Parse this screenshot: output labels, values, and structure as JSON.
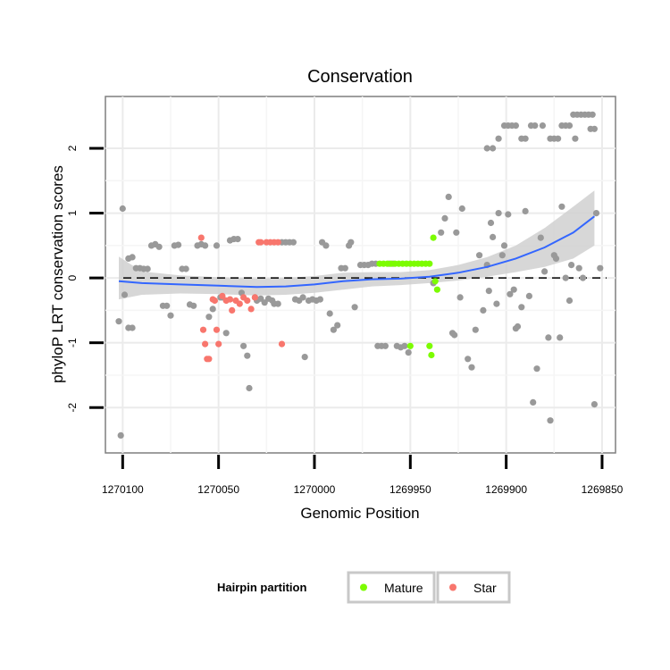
{
  "chart_data": {
    "type": "scatter",
    "title": "Conservation",
    "xlabel": "Genomic Position",
    "ylabel": "phyloP LRT conservation scores",
    "x_reversed": true,
    "xlim": [
      1270109,
      1269843
    ],
    "ylim": [
      -2.7,
      2.8
    ],
    "xticks": [
      1270100,
      1270050,
      1270000,
      1269950,
      1269900,
      1269850
    ],
    "xtick_labels": [
      "1270100",
      "1270050",
      "1270000",
      "1269950",
      "1269900",
      "1269850"
    ],
    "yticks": [
      -2,
      -1,
      0,
      1,
      2
    ],
    "ytick_labels": [
      "-2",
      "-1",
      "0",
      "1",
      "2"
    ],
    "reference_line": {
      "y": 0,
      "style": "dashed",
      "color": "#000000"
    },
    "grid": true,
    "legend": {
      "title": "Hairpin partition",
      "placement": "bottom",
      "entries": [
        {
          "name": "Mature",
          "color": "#7CFC00"
        },
        {
          "name": "Star",
          "color": "#F8766D"
        }
      ]
    },
    "colors": {
      "other": "#999999",
      "smooth": "#3366FF",
      "ribbon": "#D0D0D0"
    },
    "smooth": {
      "x": [
        1270102,
        1270090,
        1270070,
        1270050,
        1270030,
        1270015,
        1270000,
        1269985,
        1269970,
        1269955,
        1269940,
        1269925,
        1269910,
        1269895,
        1269880,
        1269865,
        1269854
      ],
      "y": [
        -0.05,
        -0.08,
        -0.1,
        -0.12,
        -0.14,
        -0.13,
        -0.1,
        -0.05,
        -0.02,
        -0.01,
        0.02,
        0.08,
        0.17,
        0.3,
        0.47,
        0.7,
        0.95
      ],
      "lower": [
        -0.33,
        -0.26,
        -0.24,
        -0.25,
        -0.27,
        -0.26,
        -0.23,
        -0.18,
        -0.13,
        -0.11,
        -0.08,
        -0.04,
        0.02,
        0.09,
        0.17,
        0.3,
        0.5
      ],
      "upper": [
        0.33,
        0.1,
        0.04,
        0.01,
        -0.01,
        0.0,
        0.03,
        0.08,
        0.09,
        0.09,
        0.12,
        0.2,
        0.32,
        0.5,
        0.77,
        1.1,
        1.35
      ]
    },
    "series": [
      {
        "name": "Other",
        "color": "#999999",
        "points": [
          [
            1270102,
            -0.67
          ],
          [
            1270100,
            1.07
          ],
          [
            1270099,
            -0.26
          ],
          [
            1270097,
            -0.77
          ],
          [
            1270095,
            -0.77
          ],
          [
            1270101,
            -2.43
          ],
          [
            1270097,
            0.3
          ],
          [
            1270095,
            0.32
          ],
          [
            1270093,
            0.15
          ],
          [
            1270091,
            0.15
          ],
          [
            1270089,
            0.14
          ],
          [
            1270087,
            0.14
          ],
          [
            1270085,
            0.5
          ],
          [
            1270083,
            0.52
          ],
          [
            1270081,
            0.48
          ],
          [
            1270079,
            -0.43
          ],
          [
            1270077,
            -0.43
          ],
          [
            1270075,
            -0.58
          ],
          [
            1270073,
            0.5
          ],
          [
            1270071,
            0.51
          ],
          [
            1270069,
            0.14
          ],
          [
            1270067,
            0.14
          ],
          [
            1270065,
            -0.41
          ],
          [
            1270063,
            -0.43
          ],
          [
            1270061,
            0.5
          ],
          [
            1270059,
            0.52
          ],
          [
            1270057,
            0.5
          ],
          [
            1270055,
            -0.6
          ],
          [
            1270053,
            -0.48
          ],
          [
            1270051,
            0.5
          ],
          [
            1270049,
            -0.3
          ],
          [
            1270048,
            -0.3
          ],
          [
            1270046,
            -0.85
          ],
          [
            1270044,
            0.58
          ],
          [
            1270042,
            0.6
          ],
          [
            1270040,
            0.6
          ],
          [
            1270038,
            -0.23
          ],
          [
            1270037,
            -1.05
          ],
          [
            1270035,
            -1.2
          ],
          [
            1270034,
            -1.7
          ],
          [
            1270031,
            -0.3
          ],
          [
            1270030,
            -0.35
          ],
          [
            1270028,
            -0.32
          ],
          [
            1270026,
            -0.38
          ],
          [
            1270024,
            -0.32
          ],
          [
            1270022,
            -0.35
          ],
          [
            1270021,
            -0.4
          ],
          [
            1270019,
            -0.4
          ],
          [
            1270017,
            0.55
          ],
          [
            1270015,
            0.55
          ],
          [
            1270013,
            0.55
          ],
          [
            1270011,
            0.55
          ],
          [
            1270010,
            -0.33
          ],
          [
            1270008,
            -0.35
          ],
          [
            1270006,
            -0.3
          ],
          [
            1270005,
            -1.22
          ],
          [
            1270003,
            -0.35
          ],
          [
            1270001,
            -0.33
          ],
          [
            1269999,
            -0.35
          ],
          [
            1269997,
            -0.33
          ],
          [
            1269996,
            0.55
          ],
          [
            1269994,
            0.5
          ],
          [
            1269992,
            -0.55
          ],
          [
            1269990,
            -0.8
          ],
          [
            1269988,
            -0.73
          ],
          [
            1269986,
            0.15
          ],
          [
            1269984,
            0.15
          ],
          [
            1269982,
            0.5
          ],
          [
            1269981,
            0.55
          ],
          [
            1269979,
            -0.45
          ],
          [
            1269976,
            0.2
          ],
          [
            1269974,
            0.2
          ],
          [
            1269972,
            0.2
          ],
          [
            1269970,
            0.22
          ],
          [
            1269968,
            0.22
          ],
          [
            1269967,
            -1.05
          ],
          [
            1269965,
            -1.05
          ],
          [
            1269963,
            -1.05
          ],
          [
            1269961,
            0.22
          ],
          [
            1269959,
            0.22
          ],
          [
            1269957,
            -1.05
          ],
          [
            1269955,
            -1.07
          ],
          [
            1269953,
            -1.05
          ],
          [
            1269951,
            -1.15
          ],
          [
            1269938,
            -0.08
          ],
          [
            1269934,
            0.7
          ],
          [
            1269932,
            0.92
          ],
          [
            1269930,
            1.25
          ],
          [
            1269928,
            -0.85
          ],
          [
            1269927,
            -0.88
          ],
          [
            1269926,
            0.7
          ],
          [
            1269924,
            -0.3
          ],
          [
            1269923,
            1.07
          ],
          [
            1269920,
            -1.25
          ],
          [
            1269918,
            -1.38
          ],
          [
            1269916,
            -0.8
          ],
          [
            1269914,
            0.35
          ],
          [
            1269912,
            -0.5
          ],
          [
            1269910,
            0.2
          ],
          [
            1269909,
            -0.2
          ],
          [
            1269908,
            0.85
          ],
          [
            1269907,
            0.63
          ],
          [
            1269905,
            -0.4
          ],
          [
            1269904,
            1.0
          ],
          [
            1269902,
            0.35
          ],
          [
            1269901,
            0.5
          ],
          [
            1269899,
            0.98
          ],
          [
            1269898,
            -0.25
          ],
          [
            1269896,
            -0.18
          ],
          [
            1269895,
            -0.78
          ],
          [
            1269894,
            -0.75
          ],
          [
            1269892,
            -0.45
          ],
          [
            1269890,
            1.03
          ],
          [
            1269888,
            -0.28
          ],
          [
            1269886,
            -1.92
          ],
          [
            1269884,
            -1.4
          ],
          [
            1269882,
            0.62
          ],
          [
            1269880,
            0.1
          ],
          [
            1269878,
            -0.92
          ],
          [
            1269877,
            -2.2
          ],
          [
            1269875,
            0.35
          ],
          [
            1269874,
            0.3
          ],
          [
            1269872,
            -0.92
          ],
          [
            1269871,
            1.1
          ],
          [
            1269869,
            0.0
          ],
          [
            1269867,
            -0.35
          ],
          [
            1269866,
            0.2
          ],
          [
            1269864,
            2.15
          ],
          [
            1269862,
            0.15
          ],
          [
            1269860,
            0.0
          ],
          [
            1269855,
            2.52
          ],
          [
            1269854,
            -1.95
          ],
          [
            1269853,
            1.0
          ],
          [
            1269851,
            0.15
          ],
          [
            1269910,
            2.0
          ],
          [
            1269907,
            2.0
          ],
          [
            1269904,
            2.15
          ],
          [
            1269901,
            2.35
          ],
          [
            1269899,
            2.35
          ],
          [
            1269897,
            2.35
          ],
          [
            1269895,
            2.35
          ],
          [
            1269892,
            2.15
          ],
          [
            1269890,
            2.15
          ],
          [
            1269887,
            2.35
          ],
          [
            1269885,
            2.35
          ],
          [
            1269881,
            2.35
          ],
          [
            1269877,
            2.15
          ],
          [
            1269875,
            2.15
          ],
          [
            1269873,
            2.15
          ],
          [
            1269871,
            2.35
          ],
          [
            1269869,
            2.35
          ],
          [
            1269867,
            2.35
          ],
          [
            1269865,
            2.52
          ],
          [
            1269863,
            2.52
          ],
          [
            1269861,
            2.52
          ],
          [
            1269859,
            2.52
          ],
          [
            1269857,
            2.52
          ],
          [
            1269856,
            2.3
          ],
          [
            1269854,
            2.3
          ]
        ]
      },
      {
        "name": "Mature",
        "color": "#7CFC00",
        "points": [
          [
            1269966,
            0.22
          ],
          [
            1269964,
            0.22
          ],
          [
            1269962,
            0.22
          ],
          [
            1269960,
            0.22
          ],
          [
            1269958,
            0.22
          ],
          [
            1269956,
            0.22
          ],
          [
            1269954,
            0.22
          ],
          [
            1269952,
            0.22
          ],
          [
            1269950,
            0.22
          ],
          [
            1269948,
            0.22
          ],
          [
            1269946,
            0.22
          ],
          [
            1269944,
            0.22
          ],
          [
            1269942,
            0.22
          ],
          [
            1269940,
            0.22
          ],
          [
            1269938,
            0.62
          ],
          [
            1269937,
            -0.05
          ],
          [
            1269936,
            -0.18
          ],
          [
            1269950,
            -1.05
          ],
          [
            1269940,
            -1.05
          ],
          [
            1269939,
            -1.19
          ]
        ]
      },
      {
        "name": "Star",
        "color": "#F8766D",
        "points": [
          [
            1270059,
            0.62
          ],
          [
            1270058,
            -0.8
          ],
          [
            1270057,
            -1.02
          ],
          [
            1270056,
            -1.25
          ],
          [
            1270055,
            -1.25
          ],
          [
            1270053,
            -0.33
          ],
          [
            1270052,
            -0.35
          ],
          [
            1270051,
            -0.8
          ],
          [
            1270050,
            -1.02
          ],
          [
            1270048,
            -0.28
          ],
          [
            1270046,
            -0.35
          ],
          [
            1270044,
            -0.33
          ],
          [
            1270043,
            -0.5
          ],
          [
            1270041,
            -0.35
          ],
          [
            1270039,
            -0.4
          ],
          [
            1270037,
            -0.3
          ],
          [
            1270035,
            -0.35
          ],
          [
            1270033,
            -0.48
          ],
          [
            1270031,
            -0.3
          ],
          [
            1270029,
            0.55
          ],
          [
            1270028,
            0.55
          ],
          [
            1270025,
            0.55
          ],
          [
            1270023,
            0.55
          ],
          [
            1270021,
            0.55
          ],
          [
            1270019,
            0.55
          ],
          [
            1270017,
            -1.02
          ]
        ]
      }
    ]
  }
}
